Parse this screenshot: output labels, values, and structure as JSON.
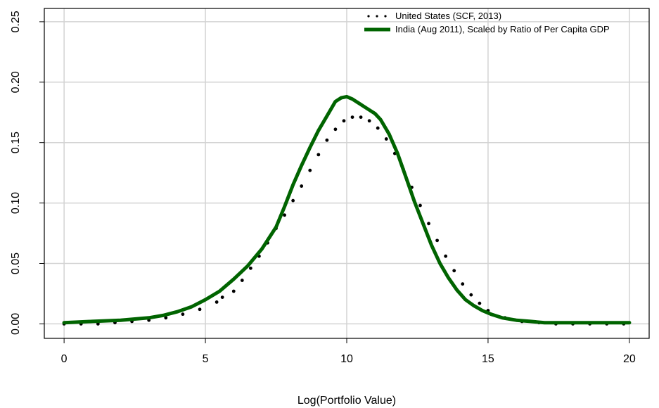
{
  "chart_data": {
    "type": "line",
    "title": "",
    "xlabel": "Log(Portfolio Value)",
    "ylabel": "",
    "xlim": [
      -0.7,
      20.7
    ],
    "ylim": [
      -0.012,
      0.261
    ],
    "grid": true,
    "legend_position": "top-right",
    "x_ticks": [
      0,
      5,
      10,
      15,
      20
    ],
    "x_tick_labels": [
      "0",
      "5",
      "10",
      "15",
      "20"
    ],
    "y_ticks": [
      0.0,
      0.05,
      0.1,
      0.15,
      0.2,
      0.25
    ],
    "y_tick_labels": [
      "0.00",
      "0.05",
      "0.10",
      "0.15",
      "0.20",
      "0.25"
    ],
    "series": [
      {
        "name": "United States (SCF, 2013)",
        "style": "dotted",
        "color": "#000000",
        "x": [
          0,
          0.6,
          1.2,
          1.8,
          2.4,
          3.0,
          3.6,
          4.2,
          4.8,
          5.4,
          5.6,
          6.0,
          6.3,
          6.6,
          6.9,
          7.2,
          7.5,
          7.8,
          8.1,
          8.4,
          8.7,
          9.0,
          9.3,
          9.6,
          9.9,
          10.2,
          10.5,
          10.8,
          11.1,
          11.4,
          11.7,
          12.0,
          12.3,
          12.6,
          12.9,
          13.2,
          13.5,
          13.8,
          14.1,
          14.4,
          14.7,
          15.0,
          15.6,
          16.2,
          16.8,
          17.4,
          18.0,
          18.6,
          19.2,
          19.8
        ],
        "y": [
          0.0,
          0.0,
          0.0,
          0.001,
          0.002,
          0.003,
          0.005,
          0.008,
          0.012,
          0.018,
          0.022,
          0.027,
          0.036,
          0.046,
          0.056,
          0.067,
          0.079,
          0.09,
          0.102,
          0.114,
          0.127,
          0.14,
          0.152,
          0.161,
          0.168,
          0.171,
          0.171,
          0.168,
          0.162,
          0.153,
          0.141,
          0.128,
          0.113,
          0.098,
          0.083,
          0.069,
          0.056,
          0.044,
          0.033,
          0.024,
          0.017,
          0.011,
          0.005,
          0.002,
          0.001,
          0.0,
          0.0,
          0.0,
          0.0,
          0.0
        ]
      },
      {
        "name": "India (Aug 2011), Scaled by Ratio of Per Capita GDP",
        "style": "solid",
        "color": "#006400",
        "x": [
          0,
          1.0,
          2.0,
          2.5,
          3.0,
          3.5,
          4.0,
          4.5,
          5.0,
          5.5,
          6.0,
          6.5,
          7.0,
          7.5,
          7.8,
          8.1,
          8.4,
          8.7,
          9.0,
          9.3,
          9.6,
          9.8,
          10.0,
          10.2,
          10.4,
          10.6,
          10.8,
          11.0,
          11.2,
          11.5,
          11.8,
          12.1,
          12.4,
          12.7,
          13.0,
          13.3,
          13.6,
          13.9,
          14.2,
          14.5,
          14.8,
          15.1,
          15.5,
          16.0,
          16.5,
          17.0,
          18.0,
          19.0,
          20.0
        ],
        "y": [
          0.001,
          0.002,
          0.003,
          0.004,
          0.005,
          0.007,
          0.01,
          0.014,
          0.02,
          0.027,
          0.037,
          0.048,
          0.062,
          0.08,
          0.097,
          0.115,
          0.131,
          0.146,
          0.16,
          0.172,
          0.184,
          0.187,
          0.188,
          0.186,
          0.183,
          0.18,
          0.177,
          0.174,
          0.169,
          0.157,
          0.141,
          0.121,
          0.101,
          0.083,
          0.065,
          0.05,
          0.038,
          0.028,
          0.02,
          0.015,
          0.011,
          0.008,
          0.005,
          0.003,
          0.002,
          0.001,
          0.001,
          0.001,
          0.001
        ]
      }
    ]
  }
}
